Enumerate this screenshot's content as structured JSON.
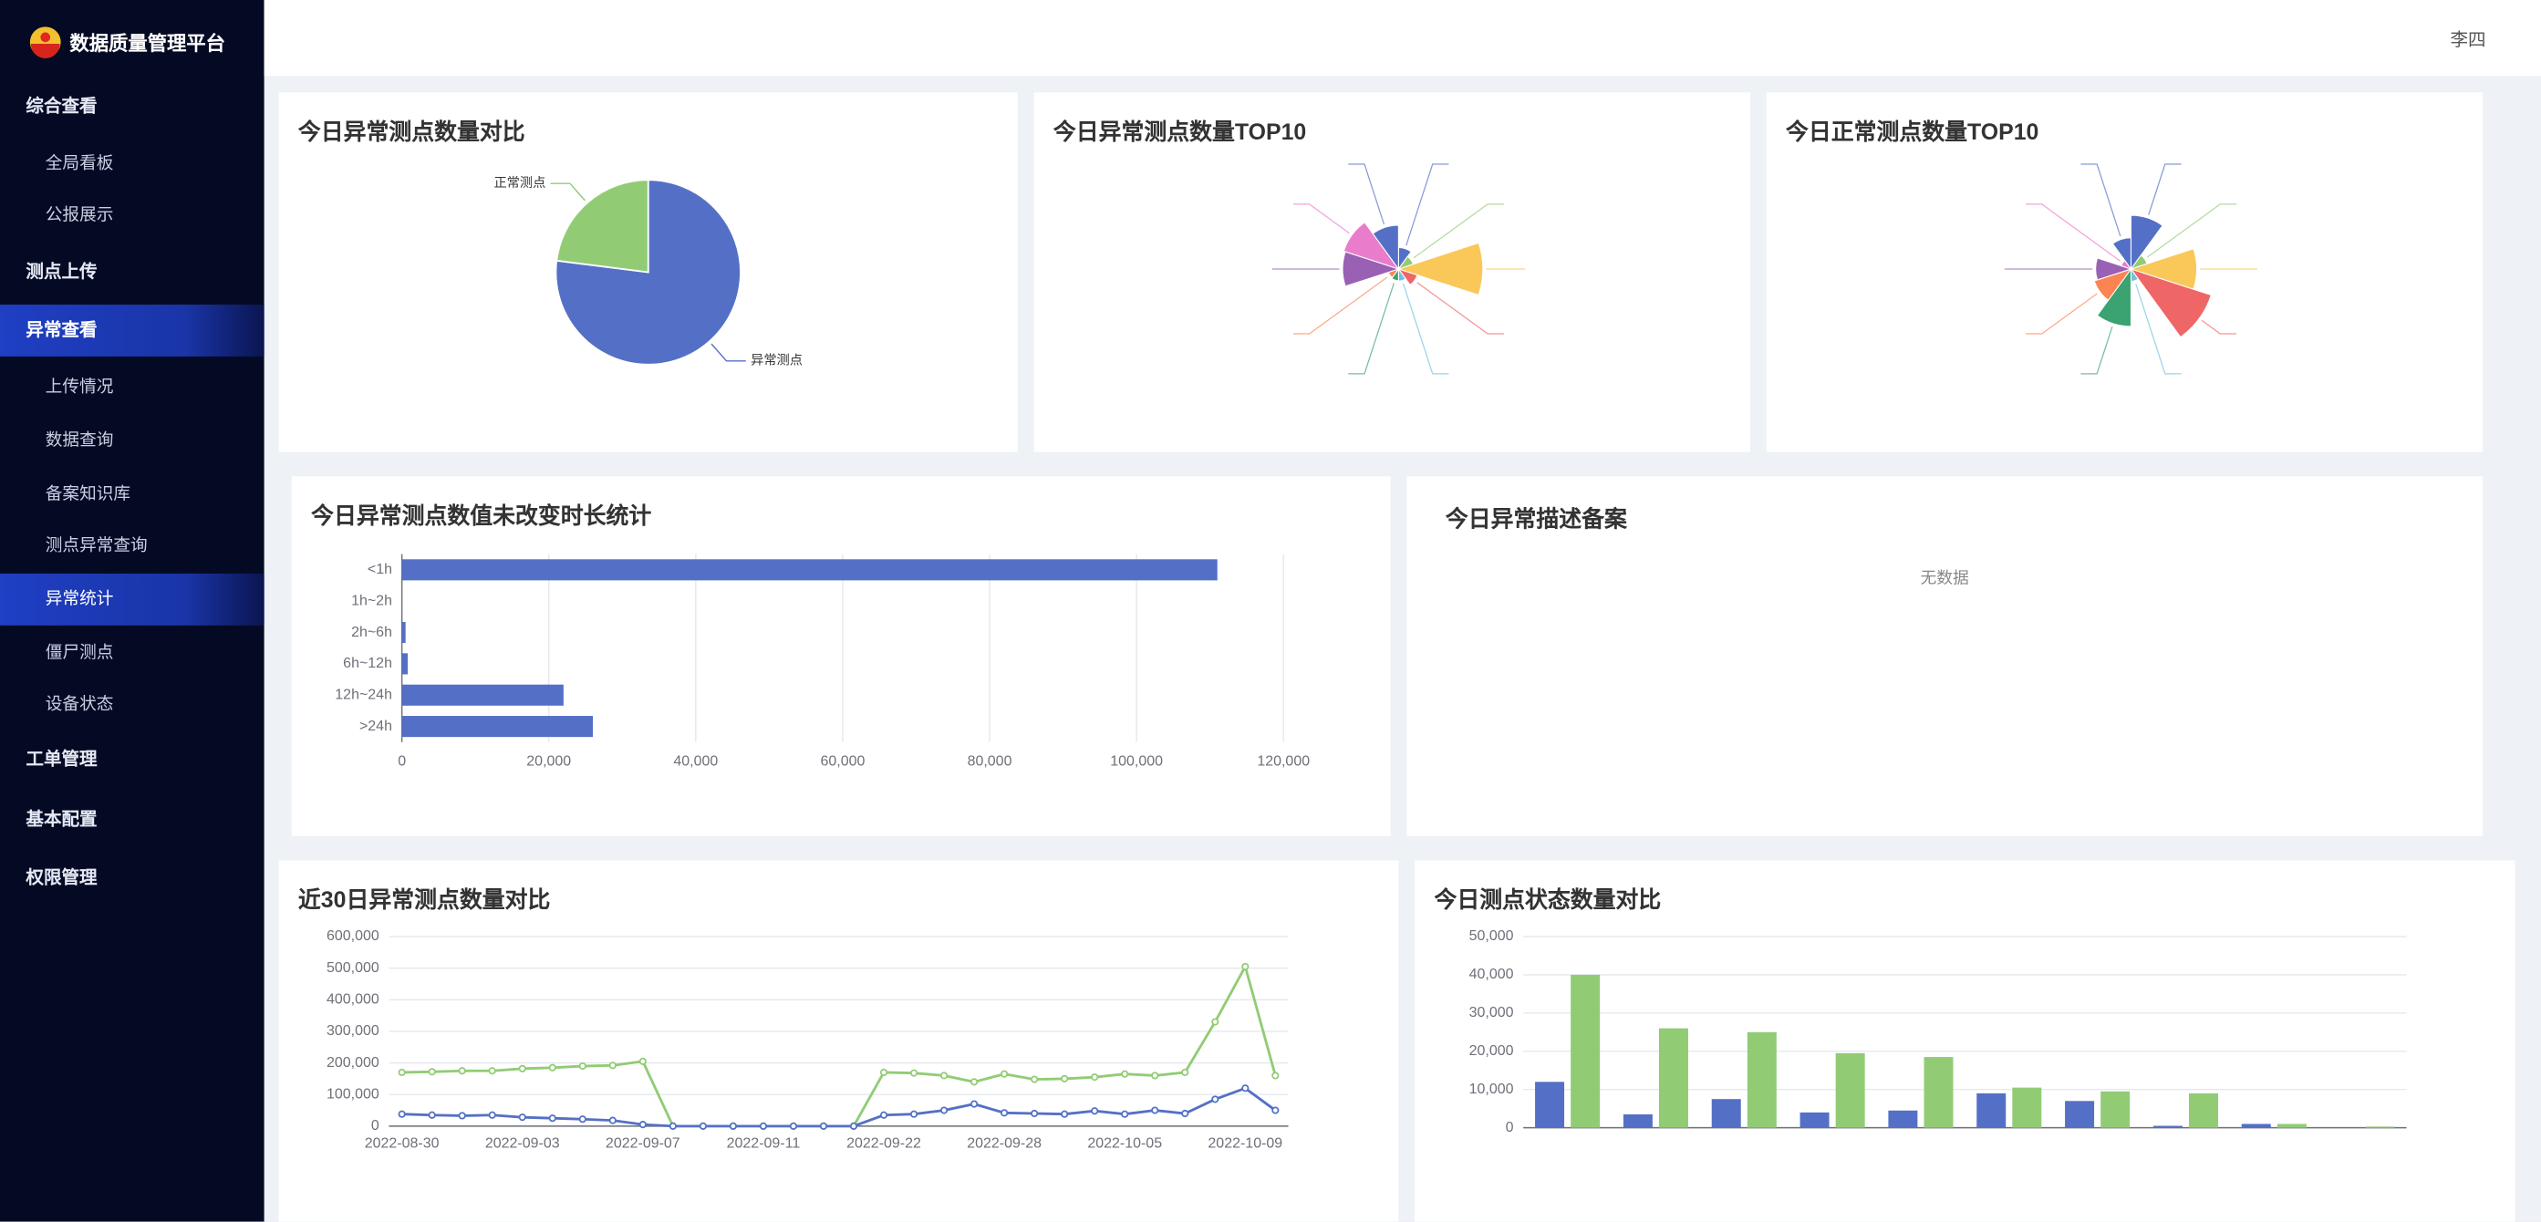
{
  "header": {
    "app_title": "数据质量管理平台",
    "user": "李四"
  },
  "sidebar": {
    "menu": [
      {
        "label": "综合查看",
        "children": [
          {
            "label": "全局看板"
          },
          {
            "label": "公报展示"
          }
        ]
      },
      {
        "label": "测点上传"
      },
      {
        "label": "异常查看",
        "active": true,
        "children": [
          {
            "label": "上传情况"
          },
          {
            "label": "数据查询"
          },
          {
            "label": "备案知识库"
          },
          {
            "label": "测点异常查询"
          },
          {
            "label": "异常统计",
            "active": true
          },
          {
            "label": "僵尸测点"
          },
          {
            "label": "设备状态"
          }
        ]
      },
      {
        "label": "工单管理"
      },
      {
        "label": "基本配置"
      },
      {
        "label": "权限管理"
      }
    ]
  },
  "description_panel": {
    "title": "今日异常描述备案",
    "empty_text": "无数据"
  },
  "chart_data": [
    {
      "type": "pie",
      "title": "今日异常测点数量对比",
      "categories": [
        "异常测点",
        "正常测点"
      ],
      "values": [
        77,
        23
      ],
      "colors": [
        "#5470c6",
        "#91cc75"
      ]
    },
    {
      "type": "rose",
      "title": "今日异常测点数量TOP10",
      "categories": [
        null,
        null,
        null,
        null,
        null,
        null,
        null,
        null,
        null,
        null
      ],
      "values": [
        6374,
        3082,
        40458,
        5432,
        1278,
        1040,
        483,
        25069,
        26016,
        18457
      ],
      "colors": [
        "#5470c6",
        "#91cc75",
        "#fac858",
        "#ee6666",
        "#73c0de",
        "#3ba272",
        "#fc8452",
        "#9a60b4",
        "#ea7ccc",
        "#5470c6"
      ]
    },
    {
      "type": "rose",
      "title": "今日正常测点数量TOP10",
      "categories": [
        null,
        null,
        null,
        null,
        null,
        null,
        null,
        null,
        null,
        null
      ],
      "values": [
        7063,
        1150,
        9000,
        11987,
        421,
        7672,
        4642,
        4128,
        103,
        3462
      ],
      "colors": [
        "#5470c6",
        "#91cc75",
        "#fac858",
        "#ee6666",
        "#73c0de",
        "#3ba272",
        "#fc8452",
        "#9a60b4",
        "#ea7ccc",
        "#5470c6"
      ]
    },
    {
      "type": "hbar",
      "title": "今日异常测点数值未改变时长统计",
      "categories": [
        "<1h",
        "1h~2h",
        "2h~6h",
        "6h~12h",
        "12h~24h",
        ">24h"
      ],
      "values": [
        111000,
        0,
        500,
        800,
        22000,
        26000
      ],
      "color": "#5470c6",
      "grid": true,
      "xlim": [
        0,
        120000
      ],
      "xticks": [
        0,
        {
          "value": 20000,
          "label": "20,000"
        },
        {
          "value": 40000,
          "label": "40,000"
        },
        {
          "value": 60000,
          "label": "60,000"
        },
        {
          "value": 80000,
          "label": "80,000"
        },
        {
          "value": 100000,
          "label": "100,000"
        },
        {
          "value": 120000,
          "label": "120,000"
        }
      ]
    },
    {
      "type": "line",
      "title": "近30日异常测点数量对比",
      "grid": true,
      "categories": [
        "2022-08-30",
        null,
        null,
        null,
        "2022-09-03",
        null,
        null,
        null,
        "2022-09-07",
        null,
        null,
        null,
        "2022-09-11",
        null,
        null,
        null,
        "2022-09-22",
        null,
        null,
        null,
        "2022-09-28",
        null,
        null,
        null,
        "2022-10-05",
        null,
        null,
        null,
        "2022-10-09",
        null
      ],
      "series": [
        {
          "color": "#91cc75",
          "values": [
            170000,
            172000,
            175000,
            175000,
            182000,
            185000,
            190000,
            192000,
            205000,
            0,
            0,
            0,
            0,
            0,
            0,
            0,
            170000,
            168000,
            160000,
            140000,
            165000,
            148000,
            150000,
            155000,
            165000,
            160000,
            170000,
            330000,
            505000,
            160000
          ]
        },
        {
          "color": "#5470c6",
          "values": [
            38000,
            35000,
            33000,
            35000,
            28000,
            25000,
            22000,
            18000,
            5000,
            0,
            0,
            0,
            0,
            0,
            0,
            0,
            35000,
            38000,
            50000,
            70000,
            42000,
            40000,
            38000,
            48000,
            38000,
            50000,
            40000,
            85000,
            120000,
            50000
          ]
        }
      ],
      "ylim": [
        0,
        600000
      ],
      "yticks": [
        0,
        {
          "value": 100000,
          "label": "100,000"
        },
        {
          "value": 200000,
          "label": "200,000"
        },
        {
          "value": 300000,
          "label": "300,000"
        },
        {
          "value": 400000,
          "label": "400,000"
        },
        {
          "value": 500000,
          "label": "500,000"
        },
        {
          "value": 600000,
          "label": "600,000"
        }
      ]
    },
    {
      "type": "bar",
      "title": "今日测点状态数量对比",
      "grid": true,
      "categories": [
        null,
        null,
        null,
        null,
        null,
        null,
        null,
        null,
        null,
        null
      ],
      "series": [
        {
          "color": "#5470c6",
          "values": [
            12000,
            3500,
            7500,
            4000,
            4500,
            9000,
            7000,
            500,
            1000,
            0
          ]
        },
        {
          "color": "#91cc75",
          "values": [
            40000,
            26000,
            25000,
            19500,
            18500,
            10500,
            9500,
            9000,
            1000,
            300
          ]
        }
      ],
      "ylim": [
        0,
        50000
      ],
      "yticks": [
        0,
        {
          "value": 10000,
          "label": "10,000"
        },
        {
          "value": 20000,
          "label": "20,000"
        },
        {
          "value": 30000,
          "label": "30,000"
        },
        {
          "value": 40000,
          "label": "40,000"
        },
        {
          "value": 50000,
          "label": "50,000"
        }
      ]
    }
  ]
}
